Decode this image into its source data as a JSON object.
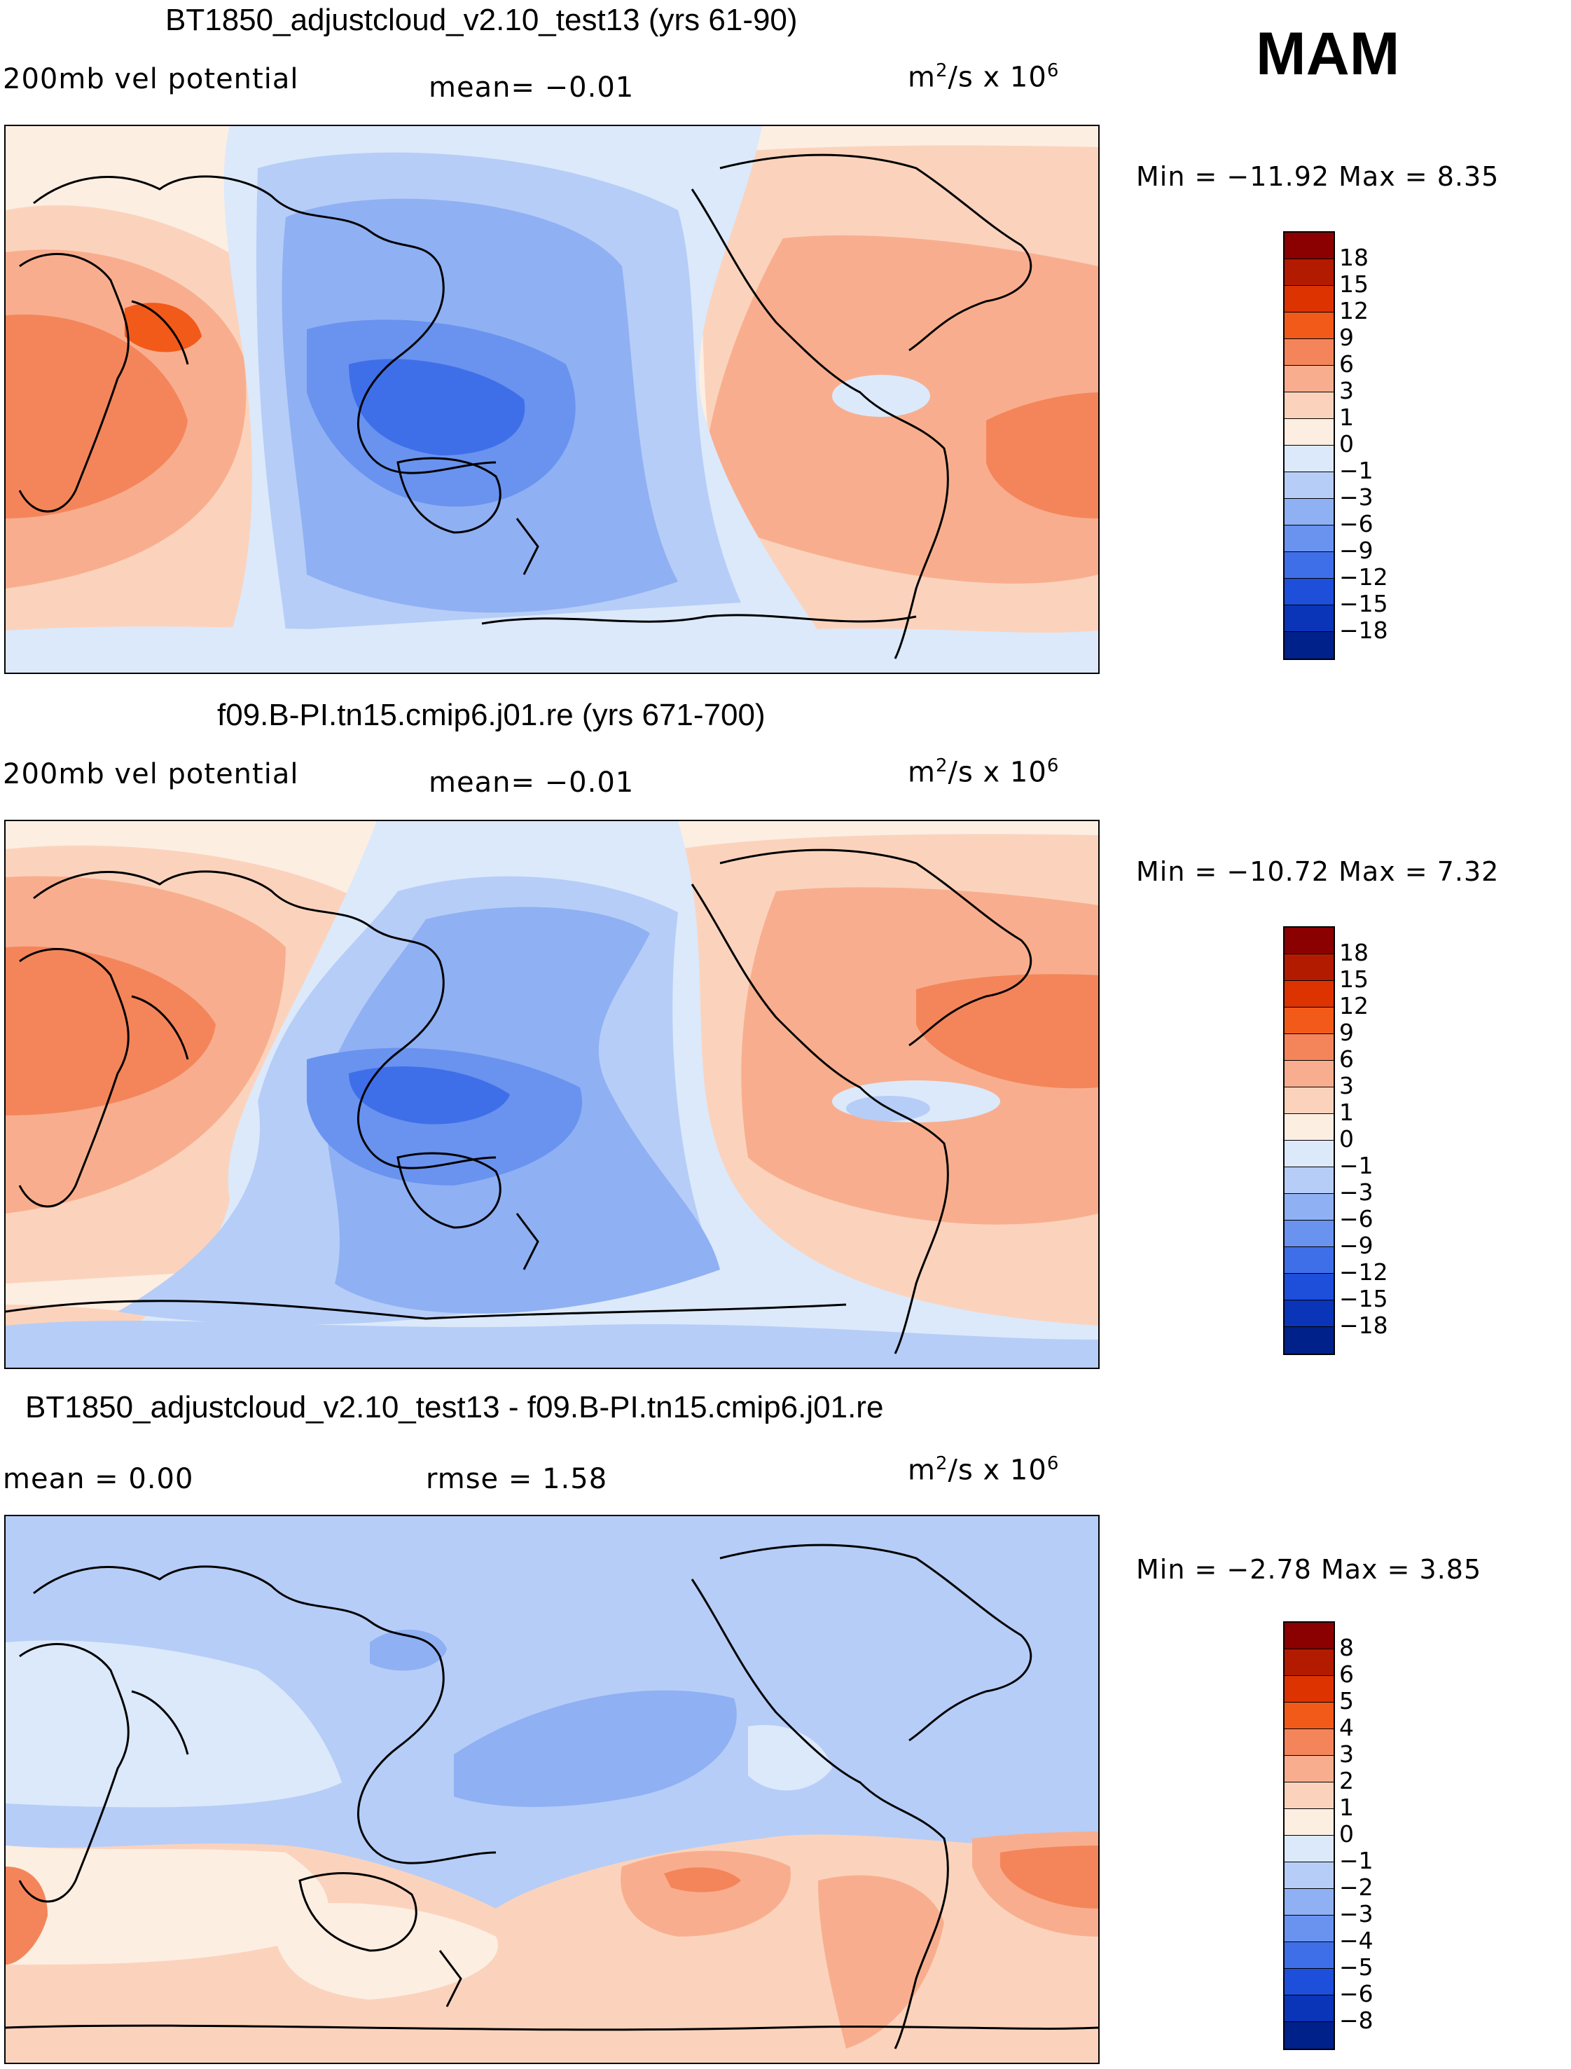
{
  "season": "MAM",
  "panels": [
    {
      "title": "BT1850_adjustcloud_v2.10_test13 (yrs 61-90)",
      "left_label": "200mb vel potential",
      "center_label": "mean=  −0.01",
      "units_base": "m",
      "units_sup": "2",
      "units_mid": "/s x 10",
      "units_sup2": "6",
      "minmax": "Min = −11.92 Max =   8.35",
      "colorbar": {
        "labels": [
          "18",
          "15",
          "12",
          "9",
          "6",
          "3",
          "1",
          "0",
          "−1",
          "−3",
          "−6",
          "−9",
          "−12",
          "−15",
          "−18"
        ],
        "colors": [
          "#8b0000",
          "#b31b00",
          "#dd3300",
          "#f25a1a",
          "#f4855a",
          "#f8ae8e",
          "#fbd3bd",
          "#fdeee2",
          "#dbe9fb",
          "#b6cdf7",
          "#8fb0f3",
          "#6993ef",
          "#3f6fe8",
          "#1d4fdb",
          "#0a35b8",
          "#00208a"
        ]
      }
    },
    {
      "title": "f09.B-PI.tn15.cmip6.j01.re (yrs 671-700)",
      "left_label": "200mb vel potential",
      "center_label": "mean=  −0.01",
      "units_base": "m",
      "units_sup": "2",
      "units_mid": "/s x 10",
      "units_sup2": "6",
      "minmax": "Min = −10.72 Max =   7.32",
      "colorbar": {
        "labels": [
          "18",
          "15",
          "12",
          "9",
          "6",
          "3",
          "1",
          "0",
          "−1",
          "−3",
          "−6",
          "−9",
          "−12",
          "−15",
          "−18"
        ],
        "colors": [
          "#8b0000",
          "#b31b00",
          "#dd3300",
          "#f25a1a",
          "#f4855a",
          "#f8ae8e",
          "#fbd3bd",
          "#fdeee2",
          "#dbe9fb",
          "#b6cdf7",
          "#8fb0f3",
          "#6993ef",
          "#3f6fe8",
          "#1d4fdb",
          "#0a35b8",
          "#00208a"
        ]
      }
    },
    {
      "title": "BT1850_adjustcloud_v2.10_test13 - f09.B-PI.tn15.cmip6.j01.re",
      "left_label": "mean =   0.00",
      "center_label": "rmse =   1.58",
      "units_base": "m",
      "units_sup": "2",
      "units_mid": "/s x 10",
      "units_sup2": "6",
      "minmax": "Min =  −2.78 Max =   3.85",
      "colorbar": {
        "labels": [
          "8",
          "6",
          "5",
          "4",
          "3",
          "2",
          "1",
          "0",
          "−1",
          "−2",
          "−3",
          "−4",
          "−5",
          "−6",
          "−8"
        ],
        "colors": [
          "#8b0000",
          "#b31b00",
          "#dd3300",
          "#f25a1a",
          "#f4855a",
          "#f8ae8e",
          "#fbd3bd",
          "#fdeee2",
          "#dbe9fb",
          "#b6cdf7",
          "#8fb0f3",
          "#6993ef",
          "#3f6fe8",
          "#1d4fdb",
          "#0a35b8",
          "#00208a"
        ]
      }
    }
  ]
}
